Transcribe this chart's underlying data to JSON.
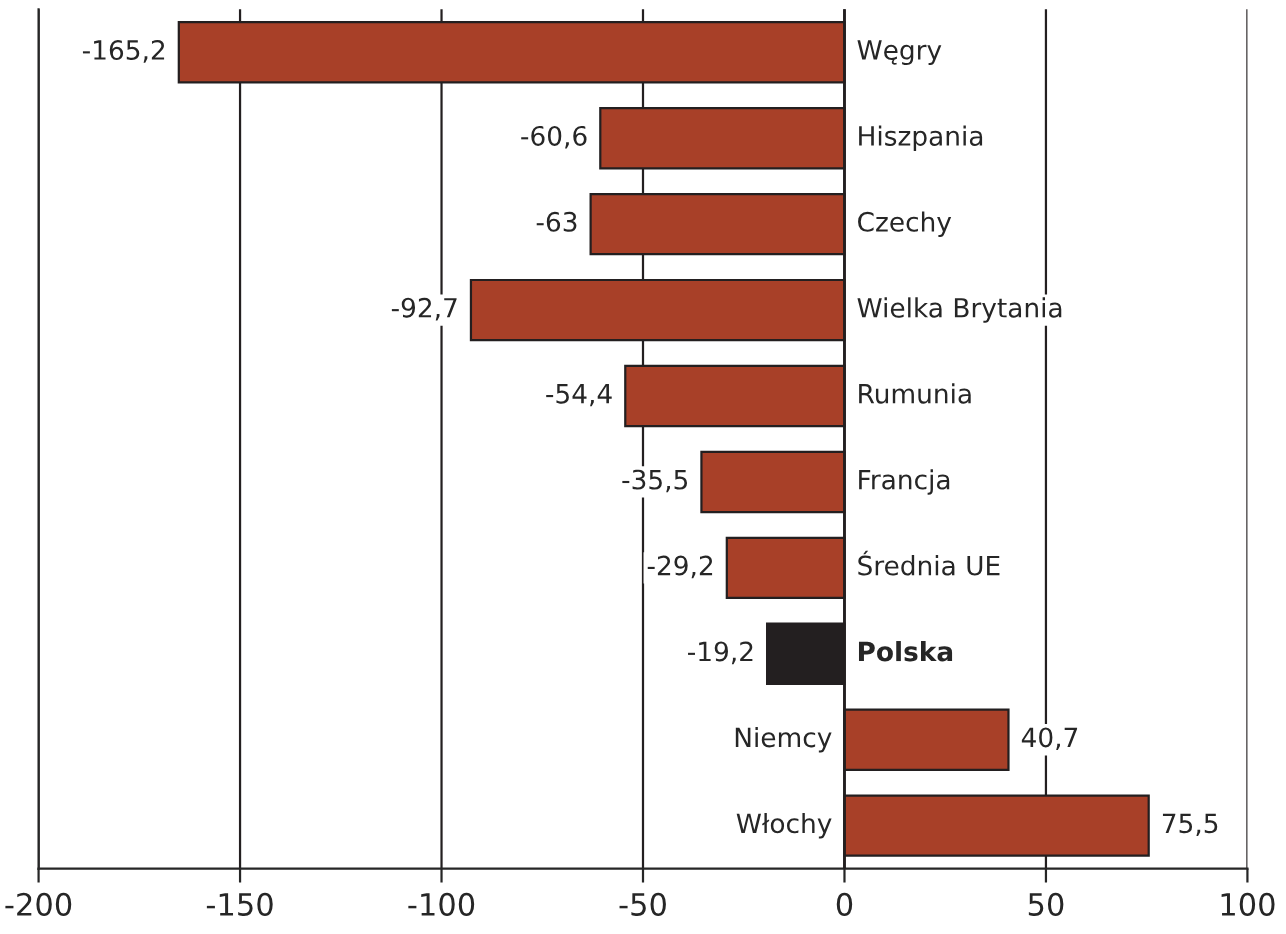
{
  "chart_data": {
    "type": "bar",
    "orientation": "horizontal",
    "categories": [
      "Węgry",
      "Hiszpania",
      "Czechy",
      "Wielka Brytania",
      "Rumunia",
      "Francja",
      "Średnia UE",
      "Polska",
      "Niemcy",
      "Włochy"
    ],
    "values": [
      -165.2,
      -60.6,
      -63,
      -92.7,
      -54.4,
      -35.5,
      -29.2,
      -19.2,
      40.7,
      75.5
    ],
    "value_labels": [
      "-165,2",
      "-60,6",
      "-63",
      "-92,7",
      "-54,4",
      "-35,5",
      "-29,2",
      "-19,2",
      "40,7",
      "75,5"
    ],
    "colors": [
      "#a84028",
      "#a84028",
      "#a84028",
      "#a84028",
      "#a84028",
      "#a84028",
      "#a84028",
      "#231f20",
      "#a84028",
      "#a84028"
    ],
    "xlim": [
      -200,
      100
    ],
    "xticks": [
      -200,
      -150,
      -100,
      -50,
      0,
      50,
      100
    ],
    "grid": "x",
    "legend": false
  }
}
